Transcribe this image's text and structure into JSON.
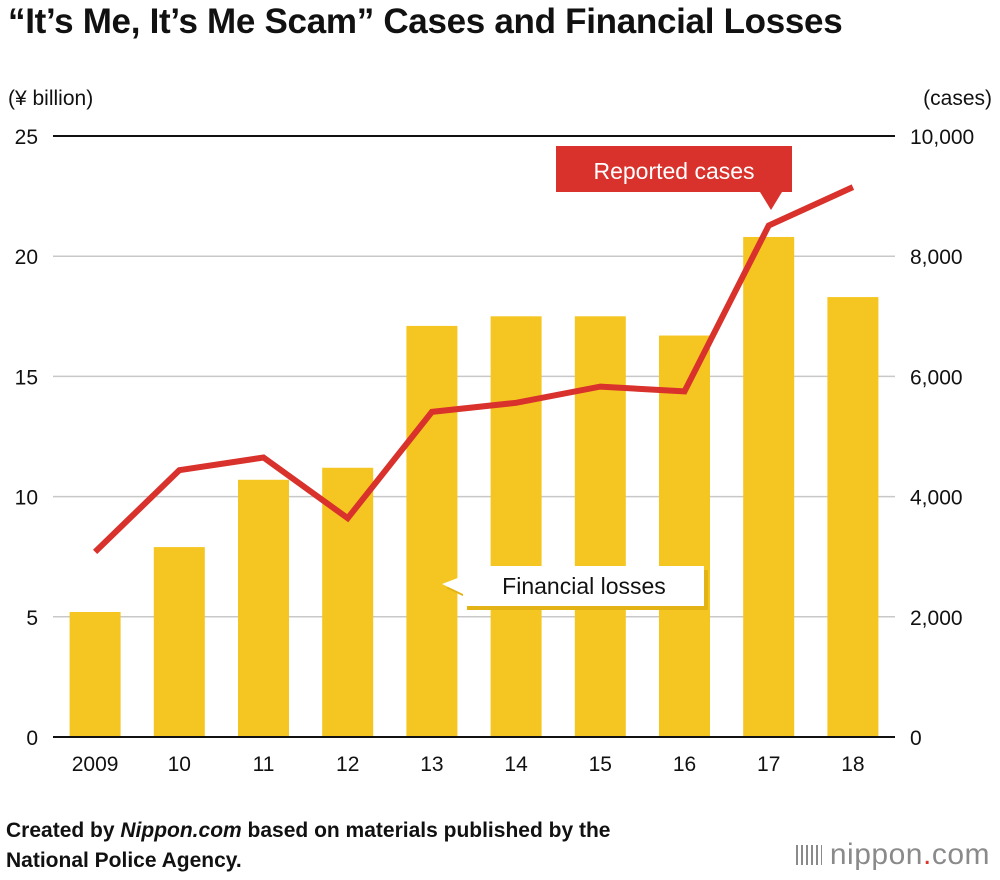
{
  "title": "“It’s Me, It’s Me Scam” Cases and Financial Losses",
  "footer": {
    "line1_pre": "Created by ",
    "line1_italic": "Nippon.com",
    "line1_post": " based on materials published by the",
    "line2": "National Police Agency."
  },
  "logo": {
    "pre": "nippon",
    "dot": ".",
    "post": "com"
  },
  "colors": {
    "bar": "#f5c621",
    "line": "#d9312b",
    "grid": "#c8c8c8",
    "axis": "#111111",
    "label_bg": "#d9312b"
  },
  "chart_data": {
    "type": "bar",
    "categories": [
      "2009",
      "10",
      "11",
      "12",
      "13",
      "14",
      "15",
      "16",
      "17",
      "18"
    ],
    "left_axis": {
      "label": "(¥ billion)",
      "ticks": [
        "0",
        "5",
        "10",
        "15",
        "20",
        "25"
      ],
      "ylim": [
        0,
        25
      ]
    },
    "right_axis": {
      "label": "(cases)",
      "ticks": [
        "0",
        "2,000",
        "4,000",
        "6,000",
        "8,000",
        "10,000"
      ],
      "ylim": [
        0,
        10000
      ]
    },
    "grid": true,
    "series": [
      {
        "name": "Financial losses",
        "type": "bar",
        "axis": "left",
        "values": [
          5.2,
          7.9,
          10.7,
          11.2,
          17.1,
          17.5,
          17.5,
          16.7,
          20.8,
          18.3
        ]
      },
      {
        "name": "Reported cases",
        "type": "line",
        "axis": "right",
        "values": [
          3080,
          4440,
          4650,
          3640,
          5410,
          5560,
          5830,
          5750,
          8510,
          9150
        ]
      }
    ]
  }
}
